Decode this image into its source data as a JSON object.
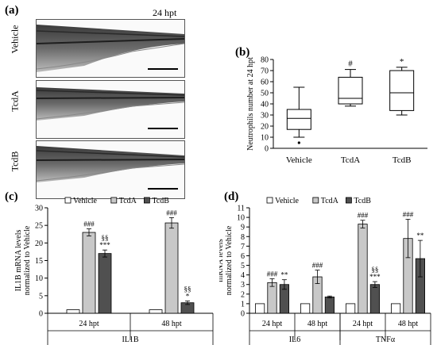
{
  "panel_a": {
    "letter": "(a)",
    "timepoint": "24 hpt",
    "rows": [
      "Vehicle",
      "TcdA",
      "TcdB"
    ]
  },
  "chart_data": [
    {
      "id": "b",
      "letter": "(b)",
      "type": "boxplot",
      "ylabel": "Neutrophils number at 24 hpt",
      "ylim": [
        0,
        80
      ],
      "yticks": [
        0,
        10,
        20,
        30,
        40,
        50,
        60,
        70,
        80
      ],
      "categories": [
        "Vehicle",
        "TcdA",
        "TcdB"
      ],
      "boxes": [
        {
          "min": 10,
          "q1": 17,
          "median": 27,
          "q3": 35,
          "max": 55,
          "outliers": [
            5
          ]
        },
        {
          "min": 38,
          "q1": 40,
          "median": 45,
          "q3": 64,
          "max": 71,
          "outliers": []
        },
        {
          "min": 30,
          "q1": 34,
          "median": 50,
          "q3": 70,
          "max": 73,
          "outliers": []
        }
      ],
      "annotations": [
        "",
        "#",
        "*"
      ]
    },
    {
      "id": "c",
      "letter": "(c)",
      "type": "bar",
      "ylabel": "IL1B mRNA levels normalized to Vehicle",
      "ylabel_lines": [
        "IL1B mRNA levels",
        "normalized to Vehicle"
      ],
      "ylim": [
        0,
        30
      ],
      "yticks": [
        0,
        5,
        10,
        15,
        20,
        25,
        30
      ],
      "legend": [
        "Vehicle",
        "TcdA",
        "TcdB"
      ],
      "groups": [
        "24 hpt",
        "48 hpt"
      ],
      "gene_labels": [
        "IL1B"
      ],
      "series": [
        {
          "name": "Vehicle",
          "color": "#ffffff",
          "values": [
            1,
            1
          ],
          "errors": [
            0,
            0
          ]
        },
        {
          "name": "TcdA",
          "color": "#c8c8c8",
          "values": [
            23,
            25.7
          ],
          "errors": [
            1,
            1.5
          ]
        },
        {
          "name": "TcdB",
          "color": "#505050",
          "values": [
            17,
            3
          ],
          "errors": [
            1,
            0.5
          ]
        }
      ],
      "annotations": [
        {
          "group": 0,
          "series": 1,
          "lines": [
            "###"
          ]
        },
        {
          "group": 0,
          "series": 2,
          "lines": [
            "§§",
            "***"
          ]
        },
        {
          "group": 1,
          "series": 1,
          "lines": [
            "###"
          ]
        },
        {
          "group": 1,
          "series": 2,
          "lines": [
            "§§",
            "*"
          ]
        }
      ]
    },
    {
      "id": "d",
      "letter": "(d)",
      "type": "bar",
      "ylabel": "mRNA levels normalized to Vehicle",
      "ylabel_lines": [
        "mRNA levels",
        "normalized to Vehicle"
      ],
      "ylim": [
        0,
        11
      ],
      "yticks": [
        0,
        1,
        2,
        3,
        4,
        5,
        6,
        7,
        8,
        9,
        10,
        11
      ],
      "legend": [
        "Vehicle",
        "TcdA",
        "TcdB"
      ],
      "groups": [
        "24 hpt",
        "48 hpt",
        "24 hpt",
        "48 hpt"
      ],
      "gene_labels": [
        "IL6",
        "TNFα"
      ],
      "series": [
        {
          "name": "Vehicle",
          "color": "#ffffff",
          "values": [
            1,
            1,
            1,
            1
          ],
          "errors": [
            0,
            0,
            0,
            0
          ]
        },
        {
          "name": "TcdA",
          "color": "#c8c8c8",
          "values": [
            3.2,
            3.8,
            9.3,
            7.8
          ],
          "errors": [
            0.4,
            0.7,
            0.4,
            2.0
          ]
        },
        {
          "name": "TcdB",
          "color": "#505050",
          "values": [
            3.0,
            1.7,
            3.0,
            5.7
          ],
          "errors": [
            0.5,
            0.1,
            0.3,
            1.9
          ]
        }
      ],
      "annotations": [
        {
          "group": 0,
          "series": 1,
          "lines": [
            "###"
          ]
        },
        {
          "group": 0,
          "series": 2,
          "lines": [
            "**"
          ]
        },
        {
          "group": 1,
          "series": 1,
          "lines": [
            "###"
          ]
        },
        {
          "group": 2,
          "series": 1,
          "lines": [
            "###"
          ]
        },
        {
          "group": 2,
          "series": 2,
          "lines": [
            "§§",
            "***"
          ]
        },
        {
          "group": 3,
          "series": 1,
          "lines": [
            "###"
          ]
        },
        {
          "group": 3,
          "series": 2,
          "lines": [
            "**"
          ]
        }
      ]
    }
  ]
}
